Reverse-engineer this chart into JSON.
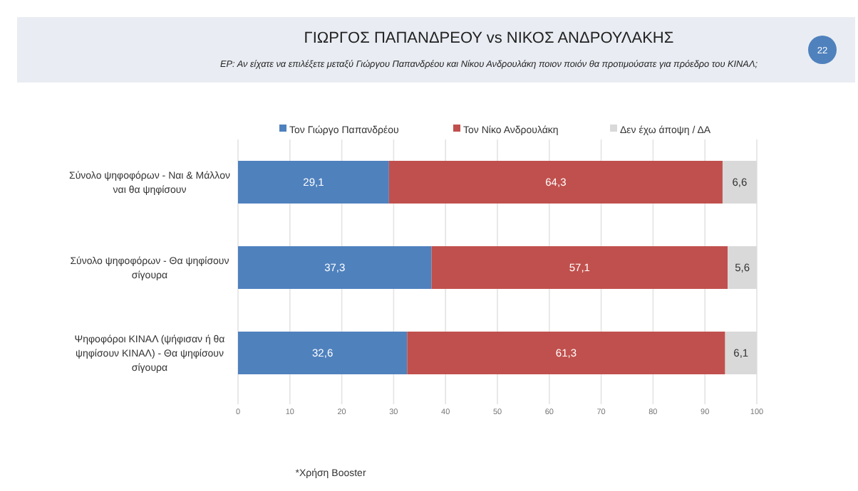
{
  "chart_data": {
    "type": "bar",
    "orientation": "horizontal",
    "stacked": true,
    "title": "ΓΙΩΡΓΟΣ ΠΑΠΑΝΔΡΕΟΥ vs ΝΙΚΟΣ ΑΝΔΡΟΥΛΑΚΗΣ",
    "subtitle": "ΕΡ: Αν είχατε να επιλέξετε μεταξύ Γιώργου Παπανδρέου και Νίκου Ανδρουλάκη ποιον  ποιόν θα προτιμούσατε για πρόεδρο του ΚΙΝΑΛ;",
    "categories": [
      "Σύνολο ψηφοφόρων - Ναι & Μάλλον ναι θα ψηφίσουν",
      "Σύνολο ψηφοφόρων - Θα ψηφίσουν σίγουρα",
      "Ψηφοφόροι ΚΙΝΑΛ (ψήφισαν ή θα ψηφίσουν ΚΙΝΑΛ) - Θα ψηφίσουν σίγουρα"
    ],
    "series": [
      {
        "name": "Τον Γιώργο Παπανδρέου",
        "color": "#4f81bd",
        "values": [
          29.1,
          37.3,
          32.6
        ],
        "value_labels": [
          "29,1",
          "37,3",
          "32,6"
        ]
      },
      {
        "name": "Τον Νίκο Ανδρουλάκη",
        "color": "#c0504d",
        "values": [
          64.3,
          57.1,
          61.3
        ],
        "value_labels": [
          "64,3",
          "57,1",
          "61,3"
        ]
      },
      {
        "name": "Δεν έχω άποψη / ΔΑ",
        "color": "#d9d9d9",
        "values": [
          6.6,
          5.6,
          6.1
        ],
        "value_labels": [
          "6,6",
          "5,6",
          "6,1"
        ]
      }
    ],
    "xlim": [
      0,
      100
    ],
    "xticks": [
      0,
      10,
      20,
      30,
      40,
      50,
      60,
      70,
      80,
      90,
      100
    ],
    "grid": "x",
    "legend": "top",
    "annotations": [
      "22",
      "*Χρήση Booster"
    ]
  }
}
